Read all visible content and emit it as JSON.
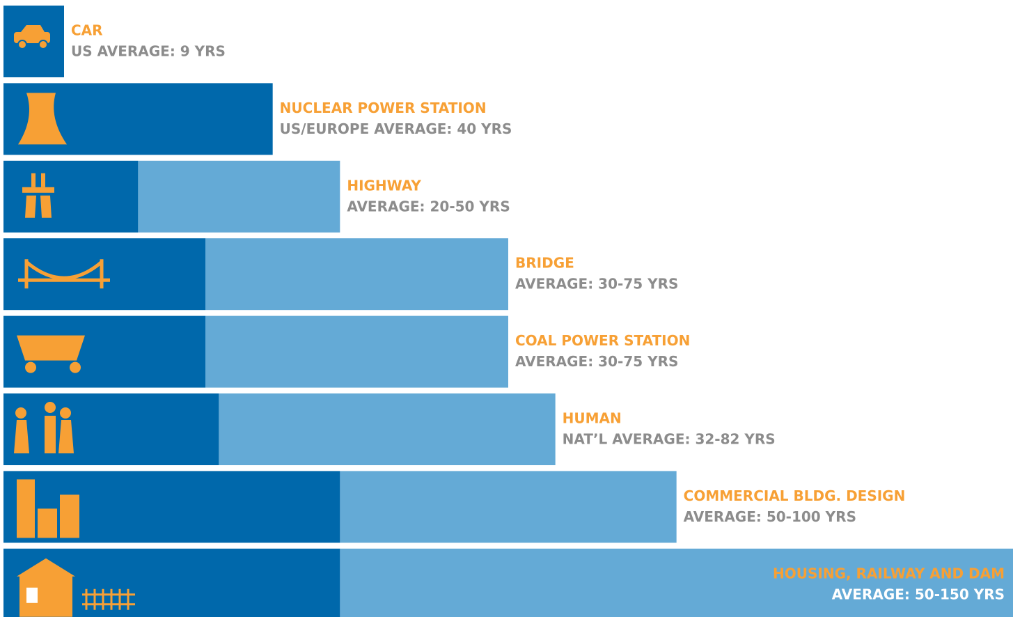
{
  "chart_data": {
    "type": "range-bar",
    "categories": [
      "CAR",
      "NUCLEAR POWER STATION",
      "HIGHWAY",
      "BRIDGE",
      "COAL POWER STATION",
      "HUMAN",
      "COMMERCIAL BLDG. DESIGN",
      "HOUSING, RAILWAY AND DAM"
    ],
    "subtitles": [
      "US AVERAGE: 9 YRS",
      "US/EUROPE AVERAGE: 40 YRS",
      "AVERAGE: 20-50 YRS",
      "AVERAGE: 30-75 YRS",
      "AVERAGE: 30-75 YRS",
      "NAT’L AVERAGE: 32-82 YRS",
      "AVERAGE: 50-100 YRS",
      "AVERAGE: 50-150 YRS"
    ],
    "low": [
      null,
      null,
      20,
      30,
      30,
      32,
      50,
      50
    ],
    "high": [
      9,
      40,
      50,
      75,
      75,
      82,
      100,
      150
    ],
    "low_color": "#0068ab",
    "high_color": "#64aad6",
    "title_color": "#f7a035",
    "subtitle_color": "#8c8c8c",
    "xlim": [
      0,
      150
    ]
  }
}
